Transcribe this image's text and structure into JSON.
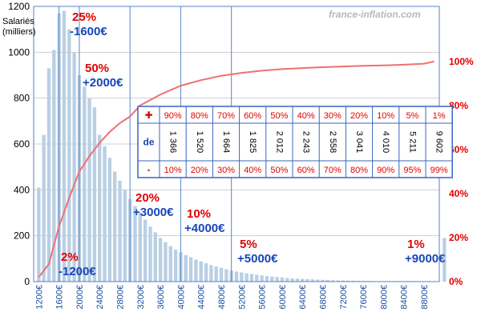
{
  "chart_data": {
    "type": "bar",
    "watermark": "france-inflation.com",
    "ylabel": "Salariés\n(milliers)",
    "yticks_left": [
      "0",
      "200",
      "400",
      "600",
      "800",
      "1000",
      "1200"
    ],
    "yticks_right": [
      "0%",
      "20%",
      "40%",
      "60%",
      "80%",
      "100%"
    ],
    "ylim_left": [
      0,
      1200
    ],
    "ylim_right": [
      0,
      1.25
    ],
    "x_range": [
      1100,
      9100
    ],
    "xticks": [
      "1200€",
      "1600€",
      "2000€",
      "2400€",
      "2800€",
      "3200€",
      "3600€",
      "4000€",
      "4400€",
      "4800€",
      "5200€",
      "5600€",
      "6000€",
      "6400€",
      "6800€",
      "7200€",
      "7600€",
      "8000€",
      "8400€",
      "8800€"
    ],
    "bars": {
      "x_start": 1150,
      "bin_width": 100,
      "values": [
        410,
        640,
        930,
        1010,
        1170,
        1180,
        1100,
        1000,
        900,
        850,
        800,
        760,
        640,
        590,
        540,
        480,
        440,
        400,
        360,
        330,
        300,
        270,
        240,
        215,
        190,
        172,
        155,
        140,
        128,
        116,
        106,
        96,
        88,
        80,
        72,
        66,
        60,
        54,
        49,
        44,
        40,
        36,
        33,
        30,
        27,
        24,
        22,
        20,
        18,
        16,
        14,
        13,
        12,
        11,
        10,
        9,
        8,
        7,
        6,
        5,
        5,
        4,
        4,
        3,
        3,
        3,
        2,
        2,
        2,
        2,
        2,
        2,
        2,
        2,
        2,
        1,
        1,
        1,
        1,
        1,
        190
      ],
      "color": "#b9cfe4"
    },
    "cdf": {
      "color": "#f07070",
      "points": [
        [
          1200,
          0.02
        ],
        [
          1400,
          0.08
        ],
        [
          1600,
          0.25
        ],
        [
          1800,
          0.38
        ],
        [
          2000,
          0.5
        ],
        [
          2200,
          0.57
        ],
        [
          2400,
          0.63
        ],
        [
          2600,
          0.68
        ],
        [
          2800,
          0.72
        ],
        [
          3000,
          0.75
        ],
        [
          3200,
          0.8
        ],
        [
          3600,
          0.85
        ],
        [
          4000,
          0.89
        ],
        [
          4400,
          0.915
        ],
        [
          4800,
          0.935
        ],
        [
          5200,
          0.948
        ],
        [
          5600,
          0.958
        ],
        [
          6000,
          0.965
        ],
        [
          6400,
          0.97
        ],
        [
          6800,
          0.974
        ],
        [
          7200,
          0.977
        ],
        [
          7600,
          0.98
        ],
        [
          8000,
          0.982
        ],
        [
          8400,
          0.985
        ],
        [
          8800,
          0.99
        ],
        [
          9000,
          1.0
        ]
      ]
    },
    "vlines": [
      1600,
      2000,
      3000,
      4000,
      5000
    ],
    "annotations": [
      {
        "pct": "25%",
        "amt": "-1600€"
      },
      {
        "pct": "50%",
        "amt": "+2000€"
      },
      {
        "pct": "20%",
        "amt": "+3000€"
      },
      {
        "pct": "10%",
        "amt": "+4000€"
      },
      {
        "pct": "5%",
        "amt": "+5000€"
      },
      {
        "pct": "1%",
        "amt": "+9000€"
      },
      {
        "pct": "2%",
        "amt": "-1200€"
      }
    ],
    "table": {
      "plus_symbol": "✚",
      "de_label": "de",
      "minus_symbol": "-",
      "top": [
        "90%",
        "80%",
        "70%",
        "60%",
        "50%",
        "40%",
        "30%",
        "20%",
        "10%",
        "5%",
        "1%"
      ],
      "values": [
        "1 366",
        "1 520",
        "1 664",
        "1 825",
        "2 012",
        "2 243",
        "2 558",
        "3 041",
        "4 010",
        "5 211",
        "9 602"
      ],
      "bottom": [
        "10%",
        "20%",
        "30%",
        "40%",
        "50%",
        "60%",
        "70%",
        "80%",
        "90%",
        "95%",
        "99%"
      ]
    }
  }
}
